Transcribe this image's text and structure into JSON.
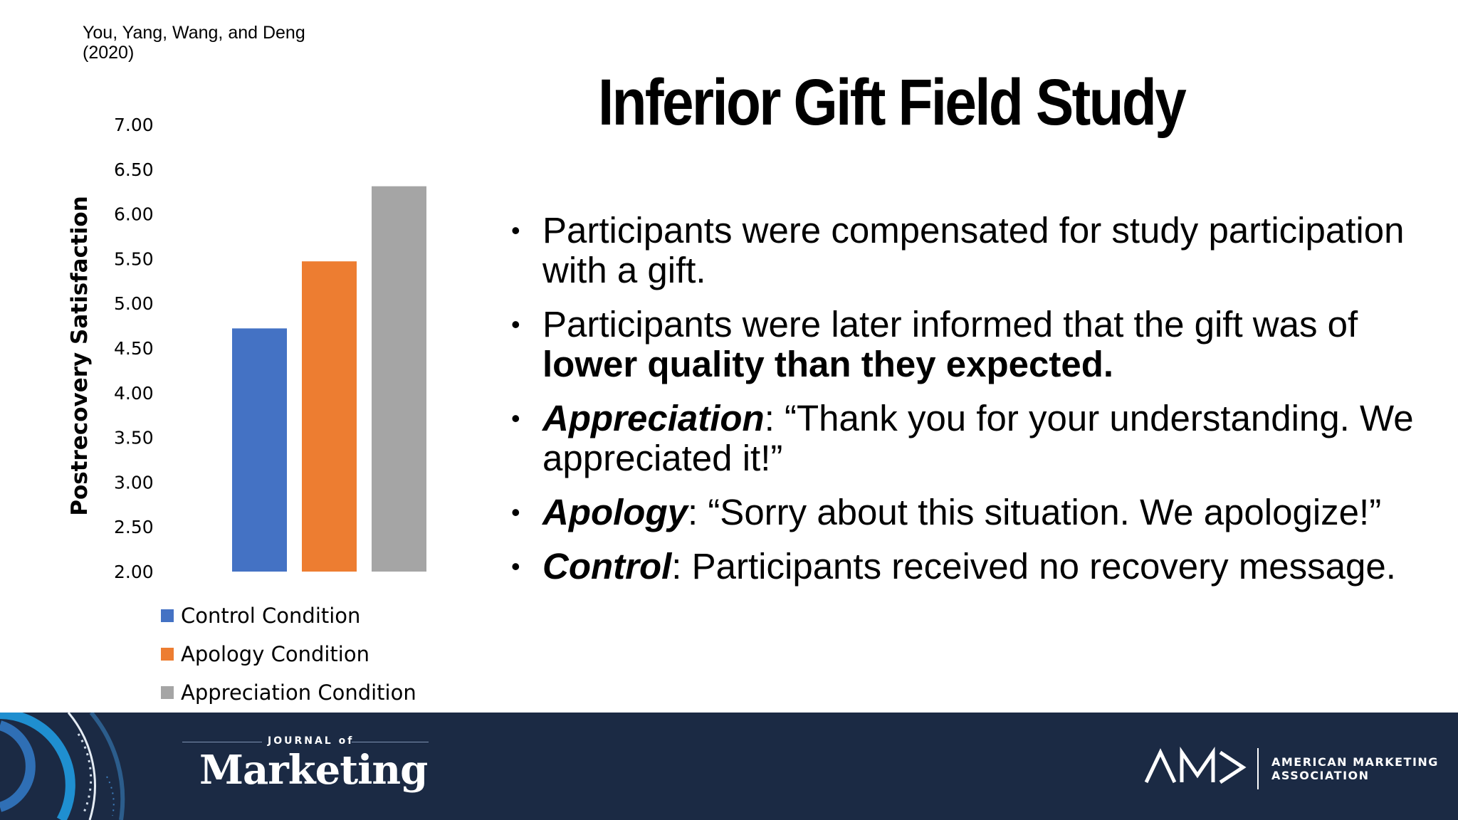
{
  "citation": "You, Yang, Wang, and Deng (2020)",
  "title": "Inferior Gift Field Study",
  "bullets": [
    {
      "plain": "Participants were compensated for study participation with a gift."
    },
    {
      "plain": "Participants were later informed that the gift was of ",
      "bold": "lower quality than they expected."
    },
    {
      "term": "Appreciation",
      "rest": ": “Thank you for your understanding. We appreciated it!”"
    },
    {
      "term": "Apology",
      "rest": ": “Sorry about this situation. We apologize!”"
    },
    {
      "term": "Control",
      "rest": ": Participants received no recovery message."
    }
  ],
  "bullet_marker": "•",
  "chart_data": {
    "type": "bar",
    "categories": [
      "Control Condition",
      "Apology Condition",
      "Appreciation Condition"
    ],
    "values": [
      4.72,
      5.47,
      6.31
    ],
    "colors": [
      "#4472c4",
      "#ed7d31",
      "#a5a5a5"
    ],
    "ylabel": "Postrecovery Satisfaction",
    "ylim": [
      2.0,
      7.0
    ],
    "yticks": [
      "7.00",
      "6.50",
      "6.00",
      "5.50",
      "5.00",
      "4.50",
      "4.00",
      "3.50",
      "3.00",
      "2.50",
      "2.00"
    ],
    "grid": false,
    "legend_position": "bottom"
  },
  "footer": {
    "background": "#1b2a44",
    "journal_top": "JOURNAL of",
    "journal_name": "Marketing",
    "ama_mark": "AM>",
    "ama_line1": "AMERICAN MARKETING",
    "ama_line2": "ASSOCIATION"
  }
}
